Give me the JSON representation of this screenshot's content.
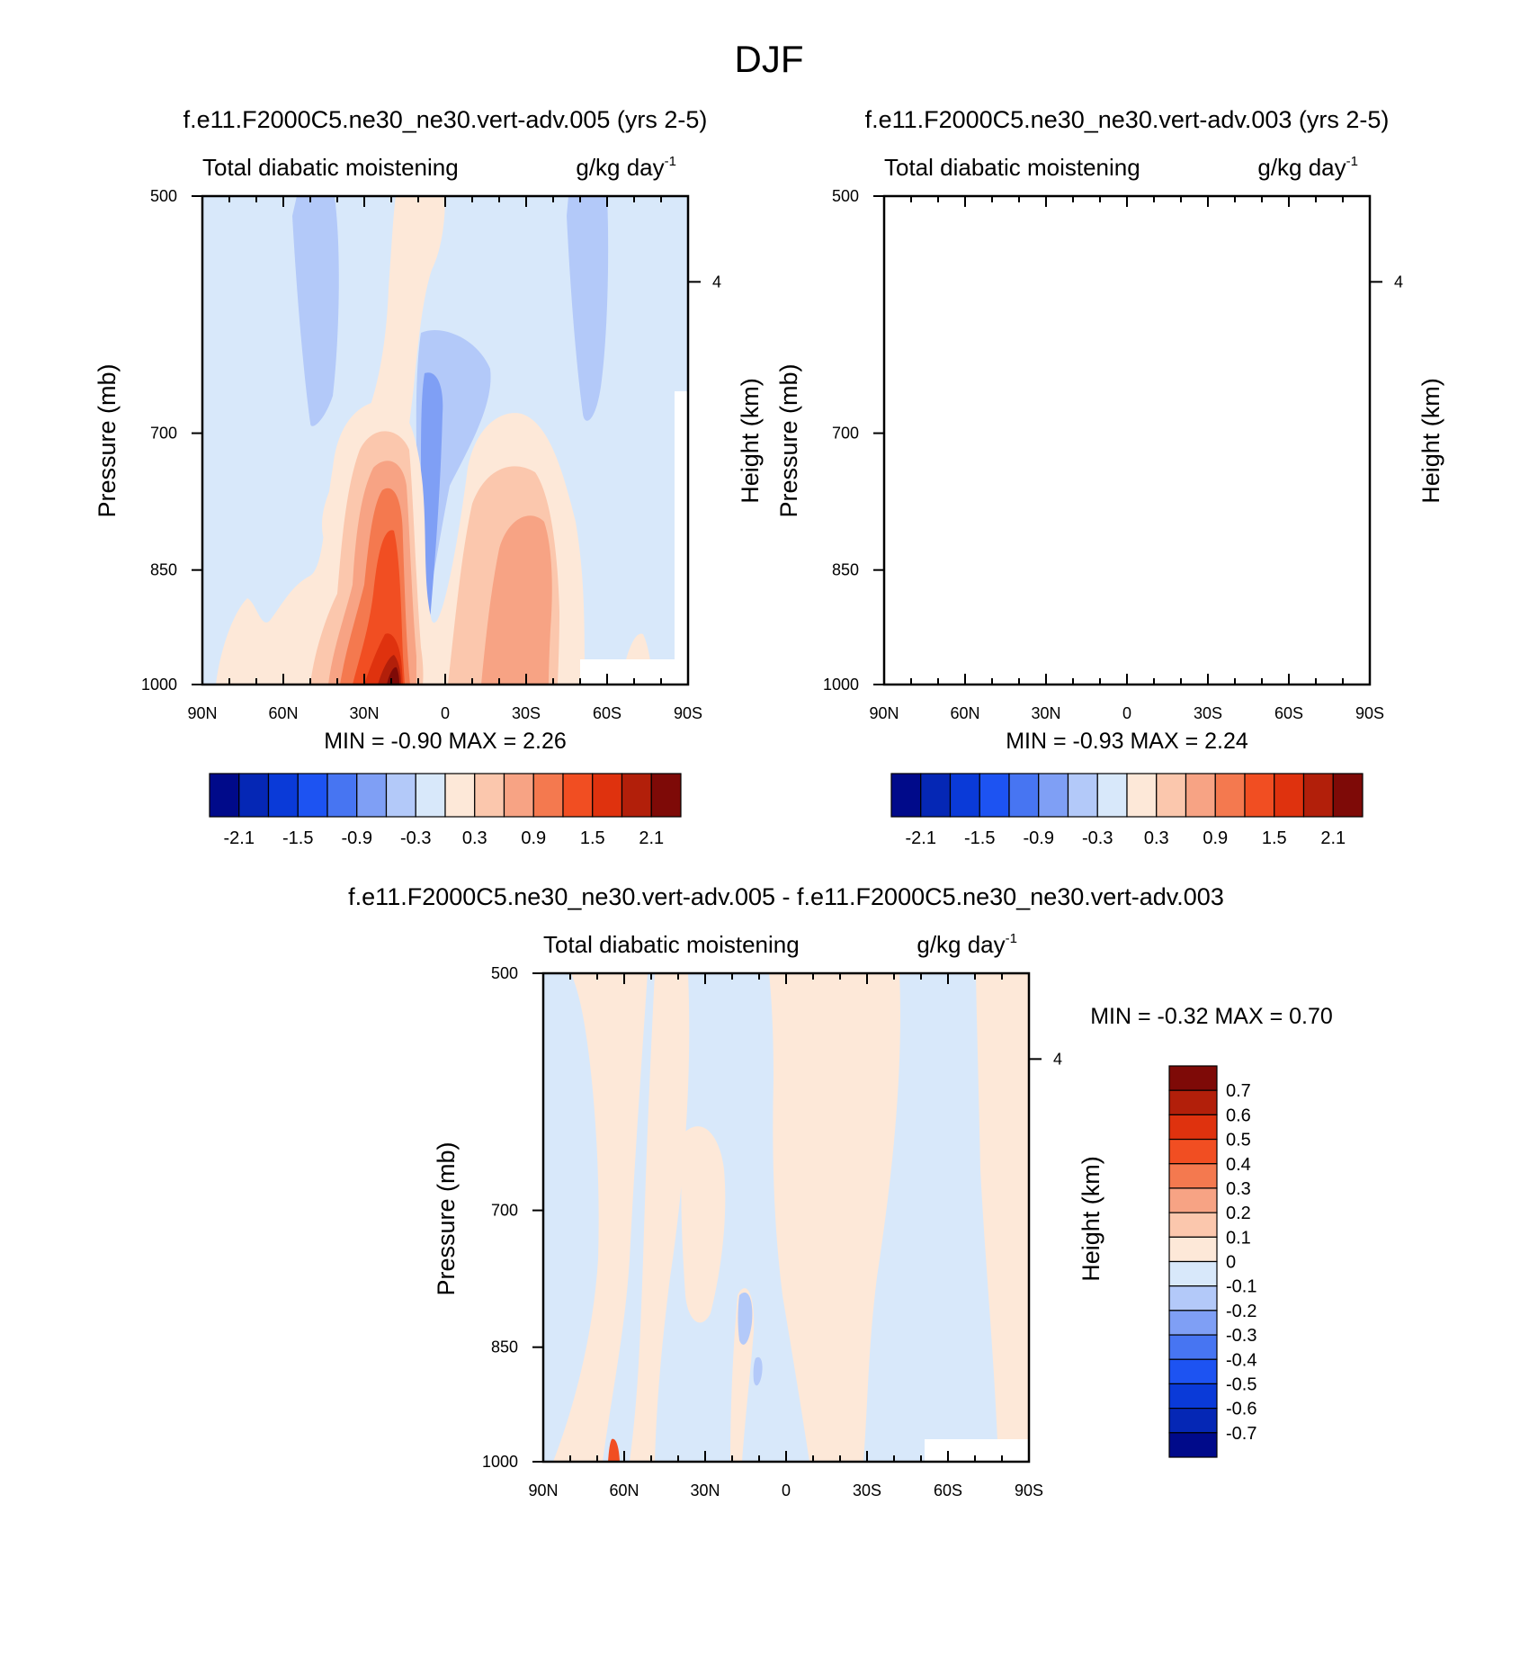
{
  "figure_title": "DJF",
  "chart_data": [
    {
      "type": "heatmap",
      "title": "f.e11.F2000C5.ne30_ne30.vert-adv.005 (yrs 2-5)",
      "left_string": "Total diabatic moistening",
      "right_string": "g/kg day",
      "right_string_sup": "-1",
      "xlabel": "",
      "ylabel": "Pressure (mb)",
      "ylabel_right": "Height (km)",
      "x_ticks": [
        "90N",
        "60N",
        "30N",
        "0",
        "30S",
        "60S",
        "90S"
      ],
      "y_ticks": [
        "500",
        "700",
        "850",
        "1000"
      ],
      "y_right_ticks": [
        "4"
      ],
      "min_max_text": "MIN =  -0.90  MAX =   2.26",
      "min": -0.9,
      "max": 2.26,
      "colorbar_labels": [
        "-2.1",
        "-1.5",
        "-0.9",
        "-0.3",
        "0.3",
        "0.9",
        "1.5",
        "2.1"
      ],
      "levels": [
        -2.1,
        -1.8,
        -1.5,
        -1.2,
        -0.9,
        -0.6,
        -0.3,
        0,
        0.3,
        0.6,
        0.9,
        1.2,
        1.5,
        1.8,
        2.1
      ],
      "colors": [
        "#000a8a",
        "#0527b5",
        "#0a3ad8",
        "#1d53f2",
        "#4775f2",
        "#7f9ff5",
        "#b3c9f9",
        "#d8e8fa",
        "#fde8d8",
        "#fbc7ad",
        "#f7a384",
        "#f4794f",
        "#f14e22",
        "#df320e",
        "#b21f0a",
        "#7e0a07"
      ]
    },
    {
      "type": "heatmap",
      "title": "f.e11.F2000C5.ne30_ne30.vert-adv.003 (yrs 2-5)",
      "left_string": "Total diabatic moistening",
      "right_string": "g/kg day",
      "right_string_sup": "-1",
      "xlabel": "",
      "ylabel": "Pressure (mb)",
      "ylabel_right": "Height (km)",
      "x_ticks": [
        "90N",
        "60N",
        "30N",
        "0",
        "30S",
        "60S",
        "90S"
      ],
      "y_ticks": [
        "500",
        "700",
        "850",
        "1000"
      ],
      "y_right_ticks": [
        "4"
      ],
      "min_max_text": "MIN =  -0.93  MAX =   2.24",
      "min": -0.93,
      "max": 2.24,
      "colorbar_labels": [
        "-2.1",
        "-1.5",
        "-0.9",
        "-0.3",
        "0.3",
        "0.9",
        "1.5",
        "2.1"
      ],
      "levels": [
        -2.1,
        -1.8,
        -1.5,
        -1.2,
        -0.9,
        -0.6,
        -0.3,
        0,
        0.3,
        0.6,
        0.9,
        1.2,
        1.5,
        1.8,
        2.1
      ],
      "colors": [
        "#000a8a",
        "#0527b5",
        "#0a3ad8",
        "#1d53f2",
        "#4775f2",
        "#7f9ff5",
        "#b3c9f9",
        "#d8e8fa",
        "#fde8d8",
        "#fbc7ad",
        "#f7a384",
        "#f4794f",
        "#f14e22",
        "#df320e",
        "#b21f0a",
        "#7e0a07"
      ]
    },
    {
      "type": "heatmap",
      "title": "f.e11.F2000C5.ne30_ne30.vert-adv.005 - f.e11.F2000C5.ne30_ne30.vert-adv.003",
      "left_string": "Total diabatic moistening",
      "right_string": "g/kg day",
      "right_string_sup": "-1",
      "xlabel": "",
      "ylabel": "Pressure (mb)",
      "ylabel_right": "Height (km)",
      "x_ticks": [
        "90N",
        "60N",
        "30N",
        "0",
        "30S",
        "60S",
        "90S"
      ],
      "y_ticks": [
        "500",
        "700",
        "850",
        "1000"
      ],
      "y_right_ticks": [
        "4"
      ],
      "min_max_text": "MIN =  -0.32  MAX =   0.70",
      "min": -0.32,
      "max": 0.7,
      "colorbar_labels": [
        "0.7",
        "0.6",
        "0.5",
        "0.4",
        "0.3",
        "0.2",
        "0.1",
        "0",
        "-0.1",
        "-0.2",
        "-0.3",
        "-0.4",
        "-0.5",
        "-0.6",
        "-0.7"
      ],
      "levels": [
        0.7,
        0.6,
        0.5,
        0.4,
        0.3,
        0.2,
        0.1,
        0,
        -0.1,
        -0.2,
        -0.3,
        -0.4,
        -0.5,
        -0.6,
        -0.7
      ],
      "colors": [
        "#7e0a07",
        "#b21f0a",
        "#df320e",
        "#f14e22",
        "#f4794f",
        "#f7a384",
        "#fbc7ad",
        "#fde8d8",
        "#d8e8fa",
        "#b3c9f9",
        "#7f9ff5",
        "#4775f2",
        "#1d53f2",
        "#0a3ad8",
        "#0527b5",
        "#000a8a"
      ]
    }
  ]
}
